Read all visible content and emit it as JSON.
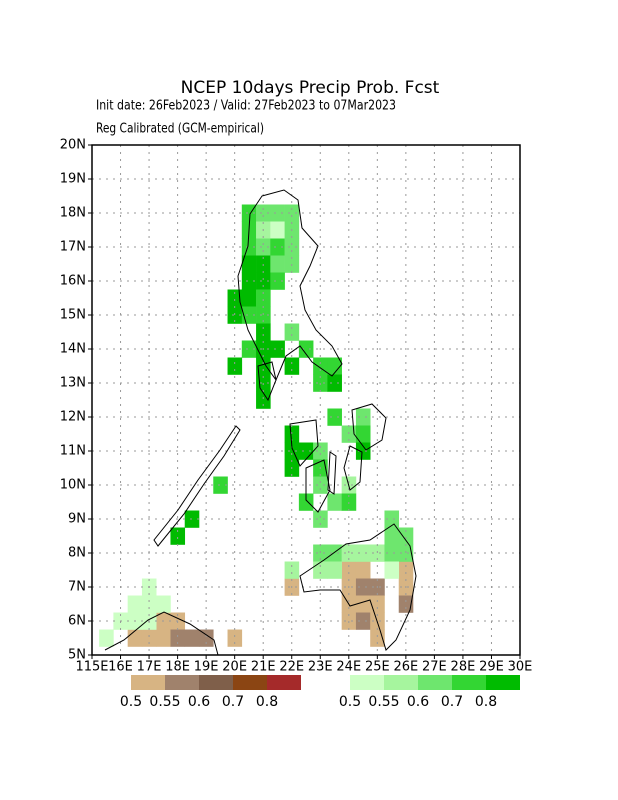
{
  "header": {
    "title": "NCEP 10days Precip Prob. Fcst",
    "subtitle": "Init date: 26Feb2023 / Valid: 27Feb2023 to 07Mar2023",
    "method": "Reg Calibrated (GCM-empirical)"
  },
  "map": {
    "xlim": [
      115,
      130
    ],
    "ylim": [
      5,
      20
    ],
    "cell_size": 0.5,
    "grid": true,
    "xticks": [
      {
        "value": 115,
        "label": "115E"
      },
      {
        "value": 116,
        "label": "16E"
      },
      {
        "value": 117,
        "label": "17E"
      },
      {
        "value": 118,
        "label": "18E"
      },
      {
        "value": 119,
        "label": "19E"
      },
      {
        "value": 120,
        "label": "20E"
      },
      {
        "value": 121,
        "label": "21E"
      },
      {
        "value": 122,
        "label": "22E"
      },
      {
        "value": 123,
        "label": "23E"
      },
      {
        "value": 124,
        "label": "24E"
      },
      {
        "value": 125,
        "label": "25E"
      },
      {
        "value": 126,
        "label": "26E"
      },
      {
        "value": 127,
        "label": "27E"
      },
      {
        "value": 128,
        "label": "28E"
      },
      {
        "value": 129,
        "label": "29E"
      },
      {
        "value": 130,
        "label": "30E"
      }
    ],
    "yticks": [
      {
        "value": 5,
        "label": "5N"
      },
      {
        "value": 6,
        "label": "6N"
      },
      {
        "value": 7,
        "label": "7N"
      },
      {
        "value": 8,
        "label": "8N"
      },
      {
        "value": 9,
        "label": "9N"
      },
      {
        "value": 10,
        "label": "10N"
      },
      {
        "value": 11,
        "label": "11N"
      },
      {
        "value": 12,
        "label": "12N"
      },
      {
        "value": 13,
        "label": "13N"
      },
      {
        "value": 14,
        "label": "14N"
      },
      {
        "value": 15,
        "label": "15N"
      },
      {
        "value": 16,
        "label": "16N"
      },
      {
        "value": 17,
        "label": "17N"
      },
      {
        "value": 18,
        "label": "18N"
      },
      {
        "value": 19,
        "label": "19N"
      },
      {
        "value": 20,
        "label": "20N"
      }
    ],
    "cells_dry": [
      [
        122,
        7,
        0.5
      ],
      [
        124,
        7.5,
        0.5
      ],
      [
        124.5,
        7.5,
        0.5
      ],
      [
        126,
        7.5,
        0.5
      ],
      [
        124,
        7,
        0.5
      ],
      [
        124.5,
        7,
        0.55
      ],
      [
        125,
        7,
        0.55
      ],
      [
        126,
        7,
        0.5
      ],
      [
        124,
        6.5,
        0.5
      ],
      [
        124.5,
        6.5,
        0.5
      ],
      [
        125,
        6.5,
        0.5
      ],
      [
        126,
        6.5,
        0.55
      ],
      [
        124,
        6,
        0.5
      ],
      [
        124.5,
        6,
        0.55
      ],
      [
        125,
        6,
        0.5
      ],
      [
        125,
        5.5,
        0.5
      ],
      [
        117.5,
        6,
        0.5
      ],
      [
        118,
        6,
        0.5
      ],
      [
        116.5,
        5.5,
        0.5
      ],
      [
        117,
        5.5,
        0.5
      ],
      [
        117.5,
        5.5,
        0.5
      ],
      [
        118,
        5.5,
        0.55
      ],
      [
        118.5,
        5.5,
        0.55
      ],
      [
        119,
        5.5,
        0.55
      ],
      [
        120,
        5.5,
        0.5
      ]
    ],
    "cells_wet": [
      [
        120.5,
        18,
        0.7
      ],
      [
        121,
        18,
        0.6
      ],
      [
        121.5,
        18,
        0.6
      ],
      [
        122,
        18,
        0.6
      ],
      [
        120.5,
        17.5,
        0.7
      ],
      [
        121,
        17.5,
        0.55
      ],
      [
        121.5,
        17.5,
        0.5
      ],
      [
        122,
        17.5,
        0.6
      ],
      [
        120.5,
        17,
        0.7
      ],
      [
        121,
        17,
        0.6
      ],
      [
        121.5,
        17,
        0.7
      ],
      [
        122,
        17,
        0.6
      ],
      [
        120.5,
        16.5,
        0.8
      ],
      [
        121,
        16.5,
        0.8
      ],
      [
        121.5,
        16.5,
        0.6
      ],
      [
        122,
        16.5,
        0.6
      ],
      [
        120.5,
        16,
        0.8
      ],
      [
        121,
        16,
        0.8
      ],
      [
        121.5,
        16,
        0.7
      ],
      [
        120,
        15.5,
        0.8
      ],
      [
        120.5,
        15.5,
        0.8
      ],
      [
        121,
        15.5,
        0.7
      ],
      [
        120,
        15,
        0.8
      ],
      [
        120.5,
        15,
        0.7
      ],
      [
        121,
        15,
        0.7
      ],
      [
        121,
        14.5,
        0.8
      ],
      [
        122,
        14.5,
        0.6
      ],
      [
        120.5,
        14,
        0.7
      ],
      [
        121,
        14,
        0.8
      ],
      [
        121.5,
        14,
        0.8
      ],
      [
        122.5,
        14,
        0.7
      ],
      [
        120,
        13.5,
        0.8
      ],
      [
        121,
        13.5,
        0.8
      ],
      [
        122,
        13.5,
        0.8
      ],
      [
        123,
        13.5,
        0.7
      ],
      [
        123.5,
        13.5,
        0.7
      ],
      [
        121,
        13,
        0.8
      ],
      [
        123,
        13,
        0.7
      ],
      [
        123.5,
        13,
        0.8
      ],
      [
        121,
        12.5,
        0.8
      ],
      [
        123.5,
        12,
        0.7
      ],
      [
        124.5,
        12,
        0.6
      ],
      [
        122,
        11.5,
        0.8
      ],
      [
        124,
        11.5,
        0.6
      ],
      [
        124.5,
        11.5,
        0.7
      ],
      [
        122,
        11,
        0.8
      ],
      [
        122.5,
        11,
        0.8
      ],
      [
        123,
        11,
        0.6
      ],
      [
        124.5,
        11,
        0.8
      ],
      [
        122,
        10.5,
        0.8
      ],
      [
        123,
        10.5,
        0.7
      ],
      [
        123,
        10,
        0.6
      ],
      [
        124,
        10,
        0.55
      ],
      [
        119.5,
        10,
        0.7
      ],
      [
        122.5,
        9.5,
        0.7
      ],
      [
        123.5,
        9.5,
        0.6
      ],
      [
        124,
        9.5,
        0.7
      ],
      [
        118.5,
        9,
        0.8
      ],
      [
        123,
        9,
        0.6
      ],
      [
        125.5,
        9,
        0.6
      ],
      [
        118,
        8.5,
        0.8
      ],
      [
        125.5,
        8.5,
        0.6
      ],
      [
        126,
        8.5,
        0.6
      ],
      [
        123,
        8,
        0.6
      ],
      [
        123.5,
        8,
        0.6
      ],
      [
        124,
        8,
        0.55
      ],
      [
        124.5,
        8,
        0.55
      ],
      [
        125,
        8,
        0.55
      ],
      [
        125.5,
        8,
        0.6
      ],
      [
        126,
        8,
        0.6
      ],
      [
        122,
        7.5,
        0.55
      ],
      [
        123,
        7.5,
        0.55
      ],
      [
        123.5,
        7.5,
        0.55
      ],
      [
        125.5,
        7.5,
        0.5
      ],
      [
        117,
        7,
        0.5
      ],
      [
        116.5,
        6.5,
        0.5
      ],
      [
        117,
        6.5,
        0.5
      ],
      [
        117.5,
        6.5,
        0.5
      ],
      [
        116,
        6,
        0.5
      ],
      [
        116.5,
        6,
        0.5
      ],
      [
        117,
        6,
        0.5
      ],
      [
        115.5,
        5.5,
        0.5
      ]
    ]
  },
  "legend_dry": {
    "levels": [
      0.5,
      0.55,
      0.6,
      0.7,
      0.8
    ],
    "colors": [
      "#d7b483",
      "#a0826c",
      "#7f5f4a",
      "#8b4513",
      "#a52a2a"
    ]
  },
  "legend_wet": {
    "levels": [
      0.5,
      0.55,
      0.6,
      0.7,
      0.8
    ],
    "colors": [
      "#ccffc4",
      "#a6f59e",
      "#6ee66e",
      "#33d633",
      "#00bb00"
    ]
  }
}
